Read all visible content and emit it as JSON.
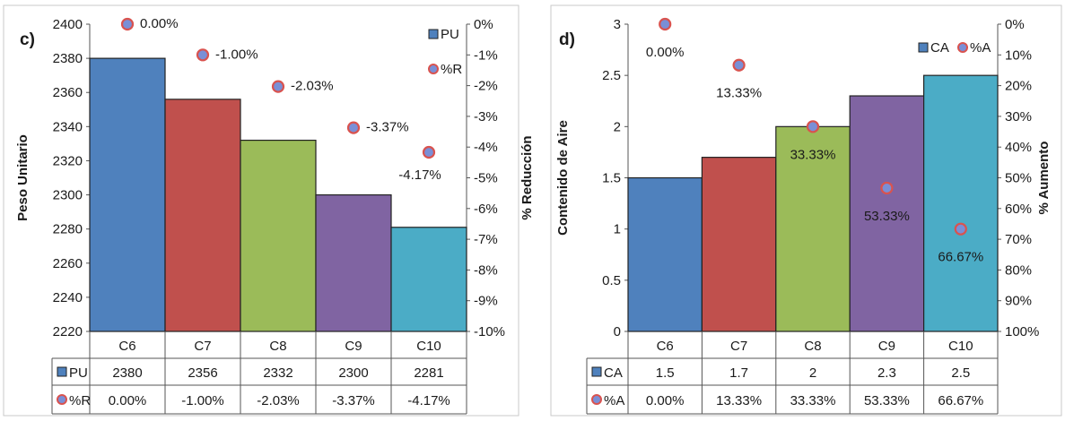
{
  "chart_data": [
    {
      "panel": "c)",
      "type": "bar",
      "categories": [
        "C6",
        "C7",
        "C8",
        "C9",
        "C10"
      ],
      "colors": [
        "#4f81bd",
        "#c0504d",
        "#9bbb59",
        "#8064a2",
        "#4bacc6"
      ],
      "ylabel": "Peso Unitario",
      "ylim": [
        2220,
        2400
      ],
      "yticks": [
        "2220",
        "2240",
        "2260",
        "2280",
        "2300",
        "2320",
        "2340",
        "2360",
        "2380",
        "2400"
      ],
      "y2label": "% Reducción",
      "y2lim": [
        -10,
        0
      ],
      "y2ticks": [
        "0%",
        "-1%",
        "-2%",
        "-3%",
        "-4%",
        "-5%",
        "-6%",
        "-7%",
        "-8%",
        "-9%",
        "-10%"
      ],
      "bar_series": {
        "name": "PU",
        "values": [
          2380,
          2356,
          2332,
          2300,
          2281
        ],
        "table_text": [
          "2380",
          "2356",
          "2332",
          "2300",
          "2281"
        ]
      },
      "point_series": {
        "name": "%R",
        "values": [
          0.0,
          -1.0,
          -2.03,
          -3.37,
          -4.17
        ],
        "labels": [
          "0.00%",
          "-1.00%",
          "-2.03%",
          "-3.37%",
          "-4.17%"
        ]
      },
      "legend": [
        "PU",
        "%R"
      ]
    },
    {
      "panel": "d)",
      "type": "bar",
      "categories": [
        "C6",
        "C7",
        "C8",
        "C9",
        "C10"
      ],
      "colors": [
        "#4f81bd",
        "#c0504d",
        "#9bbb59",
        "#8064a2",
        "#4bacc6"
      ],
      "ylabel": "Contenido de Aire",
      "ylim": [
        0,
        3
      ],
      "yticks": [
        "0",
        "0.5",
        "1",
        "1.5",
        "2",
        "2.5",
        "3"
      ],
      "y2label": "% Aumento",
      "y2lim": [
        0,
        100
      ],
      "y2_inverted": true,
      "y2ticks": [
        "0%",
        "10%",
        "20%",
        "30%",
        "40%",
        "50%",
        "60%",
        "70%",
        "80%",
        "90%",
        "100%"
      ],
      "bar_series": {
        "name": "CA",
        "values": [
          1.5,
          1.7,
          2,
          2.3,
          2.5
        ],
        "table_text": [
          "1.5",
          "1.7",
          "2",
          "2.3",
          "2.5"
        ]
      },
      "point_series": {
        "name": "%A",
        "values": [
          0.0,
          13.33,
          33.33,
          53.33,
          66.67
        ],
        "labels": [
          "0.00%",
          "13.33%",
          "33.33%",
          "53.33%",
          "66.67%"
        ]
      },
      "legend": [
        "CA",
        "%A"
      ]
    }
  ]
}
